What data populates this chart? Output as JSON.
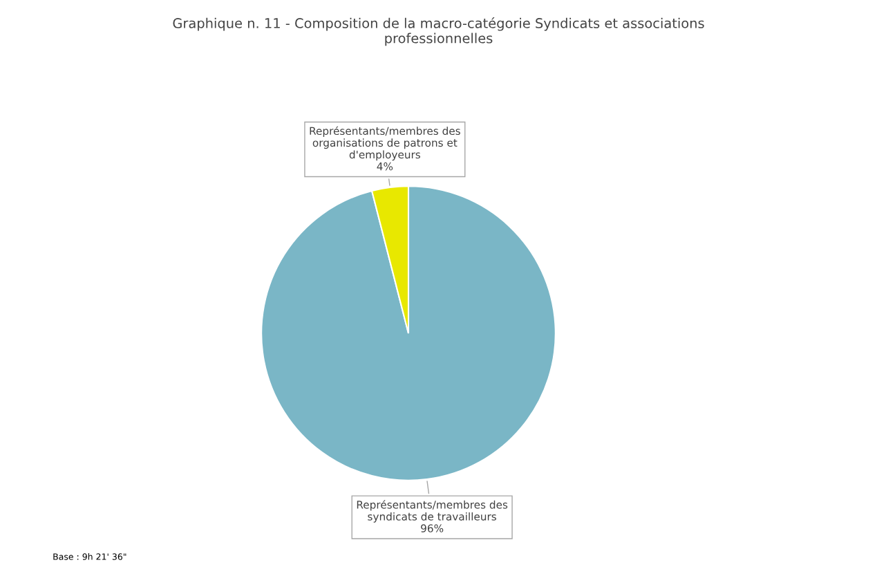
{
  "chart_data": {
    "type": "pie",
    "title": "Graphique n. 11 - Composition de la macro-catégorie Syndicats et associations\nprofessionnelles",
    "categories": [
      "Représentants/membres des\nsyndicats de travailleurs",
      "Représentants/membres des\norganisations de patrons et\nd'employeurs"
    ],
    "values": [
      96,
      4
    ],
    "colors": [
      "#7ab6c6",
      "#e8e800"
    ],
    "value_labels": [
      "96%",
      "4%"
    ],
    "legend": false,
    "annotations": [
      "Base : 9h 21' 36\""
    ]
  }
}
